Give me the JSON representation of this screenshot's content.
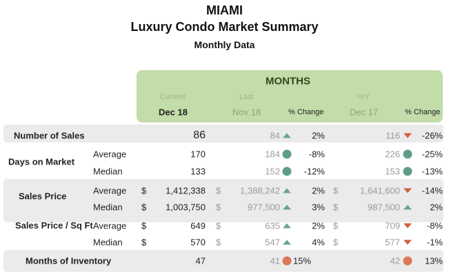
{
  "header": {
    "city": "MIAMI",
    "title": "Luxury Condo Market Summary",
    "subtitle": "Monthly Data"
  },
  "months": {
    "heading": "MONTHS",
    "current_label": "Current",
    "last_label": "Last",
    "yoy_label": "YoY",
    "current": "Dec 18",
    "last": "Nov 18",
    "last_change": "% Change",
    "yoy": "Dec 17",
    "yoy_change": "% Change"
  },
  "colors": {
    "header_green": "#c2dcaa",
    "band_grey": "#ebebeb",
    "up_green": "#6aa58a",
    "down_red": "#d0603f",
    "dot_green": "#5f9e86",
    "dot_orange": "#d9785a"
  },
  "rows": [
    {
      "group": "Number of Sales",
      "sub": "",
      "cur": "86",
      "last": "84",
      "last_ind": "triangle-up",
      "last_pct": "2%",
      "yoy": "116",
      "yoy_ind": "triangle-down",
      "yoy_pct": "-26%"
    },
    {
      "group": "Days on Market",
      "sub": "Average",
      "cur": "170",
      "last": "184",
      "last_ind": "circle-green",
      "last_pct": "-8%",
      "yoy": "226",
      "yoy_ind": "circle-green",
      "yoy_pct": "-25%"
    },
    {
      "group": "",
      "sub": "Median",
      "cur": "133",
      "last": "152",
      "last_ind": "circle-green",
      "last_pct": "-12%",
      "yoy": "153",
      "yoy_ind": "circle-green",
      "yoy_pct": "-13%"
    },
    {
      "group": "Sales Price",
      "sub": "Average",
      "dollar": "$",
      "cur": "1,412,338",
      "last": "1,388,242",
      "last_ind": "triangle-up",
      "last_pct": "2%",
      "yoy": "1,641,600",
      "yoy_ind": "triangle-down",
      "yoy_pct": "-14%"
    },
    {
      "group": "",
      "sub": "Median",
      "dollar": "$",
      "cur": "1,003,750",
      "last": "977,500",
      "last_ind": "triangle-up",
      "last_pct": "3%",
      "yoy": "987,500",
      "yoy_ind": "triangle-up",
      "yoy_pct": "2%"
    },
    {
      "group": "Sales Price / Sq Ft",
      "sub": "Average",
      "dollar": "$",
      "cur": "649",
      "last": "635",
      "last_ind": "triangle-up",
      "last_pct": "2%",
      "yoy": "709",
      "yoy_ind": "triangle-down",
      "yoy_pct": "-8%"
    },
    {
      "group": "",
      "sub": "Median",
      "dollar": "$",
      "cur": "570",
      "last": "547",
      "last_ind": "triangle-up",
      "last_pct": "4%",
      "yoy": "577",
      "yoy_ind": "triangle-down",
      "yoy_pct": "-1%"
    },
    {
      "group": "Months of Inventory",
      "sub": "",
      "cur": "47",
      "last": "41",
      "last_ind": "circle-orange",
      "last_pct": "15%",
      "yoy": "42",
      "yoy_ind": "circle-orange",
      "yoy_pct": "13%"
    }
  ]
}
